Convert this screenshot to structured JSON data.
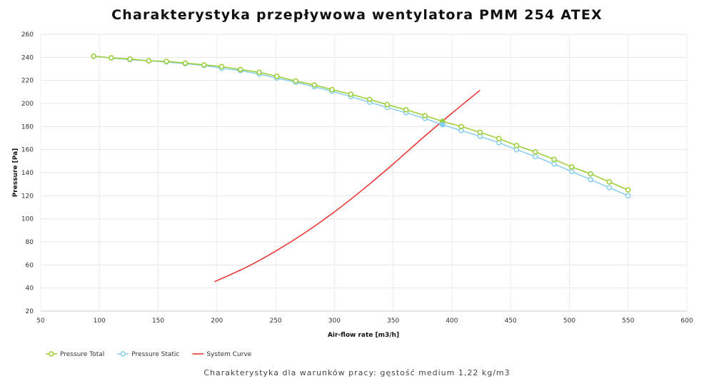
{
  "chart_data": {
    "type": "line",
    "title": "Charakterystyka przepływowa wentylatora PMM 254 ATEX",
    "xlabel": "Air-flow rate [m3/h]",
    "ylabel": "Pressure [Pa]",
    "xlim": [
      50,
      600
    ],
    "ylim": [
      20,
      260
    ],
    "xticks": [
      50,
      100,
      150,
      200,
      250,
      300,
      350,
      400,
      450,
      500,
      550,
      600
    ],
    "yticks": [
      20,
      40,
      60,
      80,
      100,
      120,
      140,
      160,
      180,
      200,
      220,
      240,
      260
    ],
    "grid": true,
    "legend_position": "bottom-left",
    "series": [
      {
        "name": "Pressure Total",
        "color": "#9acd32",
        "marker": "circle",
        "x": [
          95,
          110,
          126,
          142,
          157,
          173,
          189,
          204,
          220,
          236,
          251,
          267,
          283,
          298,
          314,
          330,
          345,
          361,
          377,
          392,
          408,
          424,
          440,
          455,
          471,
          487,
          502,
          518,
          534,
          550
        ],
        "y": [
          241,
          239.5,
          238.5,
          237,
          236.5,
          235,
          233.5,
          232,
          229.5,
          227,
          223.5,
          219.5,
          216,
          212,
          208,
          203.5,
          199,
          194.5,
          189.5,
          184.5,
          180,
          175,
          169.5,
          163.5,
          158,
          151.5,
          145,
          139,
          132,
          125
        ]
      },
      {
        "name": "Pressure Static",
        "color": "#87ceeb",
        "marker": "circle",
        "x": [
          95,
          110,
          126,
          142,
          157,
          173,
          189,
          204,
          220,
          236,
          251,
          267,
          283,
          298,
          314,
          330,
          345,
          361,
          377,
          392,
          408,
          424,
          440,
          455,
          471,
          487,
          502,
          518,
          534,
          550
        ],
        "y": [
          241,
          239.5,
          238,
          237,
          236,
          234.5,
          233,
          230.5,
          228.5,
          225.5,
          222,
          218.5,
          214.5,
          210.5,
          206,
          201,
          196.5,
          192,
          187,
          181.5,
          176.5,
          171.5,
          166,
          160,
          154,
          147.5,
          141,
          134,
          127,
          120
        ]
      },
      {
        "name": "System Curve",
        "color": "#e8312f",
        "marker": "none",
        "x": [
          198,
          225,
          250,
          275,
          300,
          325,
          350,
          375,
          400,
          424
        ],
        "y": [
          45.5,
          58,
          72,
          88,
          106,
          126,
          147.5,
          170,
          191.5,
          211.5
        ]
      }
    ],
    "operating_point": {
      "x": 392,
      "y": 183
    }
  },
  "footnote": "Charakterystyka dla warunków pracy: gęstość medium 1,22 kg/m3"
}
